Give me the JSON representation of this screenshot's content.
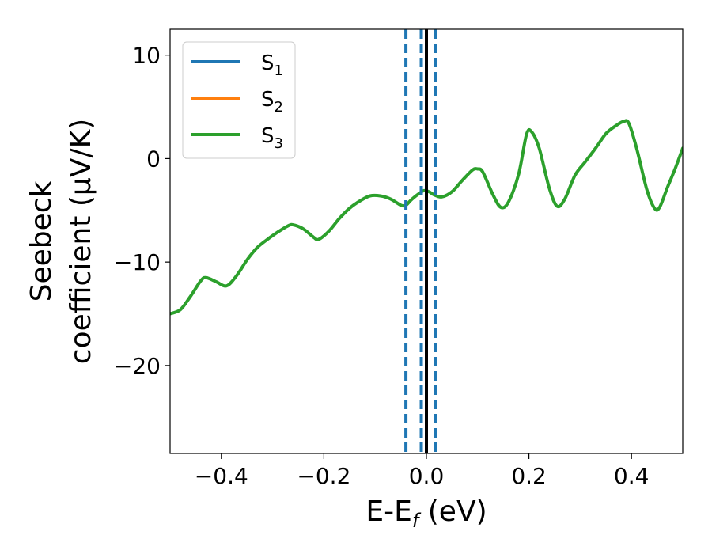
{
  "chart_data": {
    "type": "line",
    "xlabel": {
      "main": "E-E",
      "sub": "f",
      "rest": " (eV)"
    },
    "ylabel": {
      "line1": "Seebeck",
      "line2": "coefficient  (μV/K)"
    },
    "xlim": [
      -0.5,
      0.5
    ],
    "ylim": [
      -28.5,
      12.5
    ],
    "xticks": [
      -0.4,
      -0.2,
      0.0,
      0.2,
      0.4
    ],
    "xtick_labels": [
      "−0.4",
      "−0.2",
      "0.0",
      "0.2",
      "0.4"
    ],
    "yticks": [
      10,
      0,
      -10,
      -20
    ],
    "ytick_labels": [
      "10",
      "0",
      "−10",
      "−20"
    ],
    "grid": false,
    "legend_position": "top-left",
    "series": [
      {
        "name": "S",
        "sub": "1",
        "color": "#1f77b4"
      },
      {
        "name": "S",
        "sub": "2",
        "color": "#ff7f0e"
      },
      {
        "name": "S",
        "sub": "3",
        "color": "#2ca02c",
        "points": [
          [
            -0.5,
            -15.0
          ],
          [
            -0.48,
            -14.6
          ],
          [
            -0.46,
            -13.3
          ],
          [
            -0.44,
            -11.8
          ],
          [
            -0.43,
            -11.5
          ],
          [
            -0.41,
            -11.9
          ],
          [
            -0.39,
            -12.3
          ],
          [
            -0.37,
            -11.3
          ],
          [
            -0.35,
            -9.8
          ],
          [
            -0.33,
            -8.6
          ],
          [
            -0.31,
            -7.8
          ],
          [
            -0.29,
            -7.1
          ],
          [
            -0.27,
            -6.5
          ],
          [
            -0.26,
            -6.4
          ],
          [
            -0.24,
            -6.8
          ],
          [
            -0.22,
            -7.6
          ],
          [
            -0.21,
            -7.8
          ],
          [
            -0.19,
            -7.0
          ],
          [
            -0.17,
            -5.8
          ],
          [
            -0.15,
            -4.8
          ],
          [
            -0.13,
            -4.1
          ],
          [
            -0.11,
            -3.6
          ],
          [
            -0.09,
            -3.6
          ],
          [
            -0.07,
            -3.9
          ],
          [
            -0.05,
            -4.5
          ],
          [
            -0.04,
            -4.5
          ],
          [
            -0.03,
            -4.0
          ],
          [
            -0.015,
            -3.4
          ],
          [
            -0.005,
            -3.1
          ],
          [
            0.005,
            -3.2
          ],
          [
            0.015,
            -3.5
          ],
          [
            0.03,
            -3.7
          ],
          [
            0.05,
            -3.2
          ],
          [
            0.07,
            -2.1
          ],
          [
            0.09,
            -1.1
          ],
          [
            0.1,
            -1.0
          ],
          [
            0.11,
            -1.3
          ],
          [
            0.13,
            -3.5
          ],
          [
            0.145,
            -4.7
          ],
          [
            0.16,
            -4.2
          ],
          [
            0.18,
            -1.5
          ],
          [
            0.195,
            2.3
          ],
          [
            0.205,
            2.6
          ],
          [
            0.22,
            1.0
          ],
          [
            0.24,
            -2.9
          ],
          [
            0.255,
            -4.6
          ],
          [
            0.27,
            -3.9
          ],
          [
            0.29,
            -1.6
          ],
          [
            0.31,
            -0.3
          ],
          [
            0.33,
            1.0
          ],
          [
            0.35,
            2.4
          ],
          [
            0.37,
            3.2
          ],
          [
            0.385,
            3.6
          ],
          [
            0.395,
            3.4
          ],
          [
            0.41,
            1.0
          ],
          [
            0.43,
            -3.0
          ],
          [
            0.445,
            -4.8
          ],
          [
            0.455,
            -4.7
          ],
          [
            0.47,
            -2.8
          ],
          [
            0.485,
            -1.0
          ],
          [
            0.5,
            1.0
          ]
        ]
      }
    ],
    "vlines": [
      {
        "x": 0.0,
        "style": "solid",
        "color": "#000000"
      },
      {
        "x": -0.04,
        "style": "dashed",
        "color": "#1f77b4"
      },
      {
        "x": -0.01,
        "style": "dashed",
        "color": "#1f77b4"
      },
      {
        "x": 0.017,
        "style": "dashed",
        "color": "#1f77b4"
      }
    ]
  }
}
